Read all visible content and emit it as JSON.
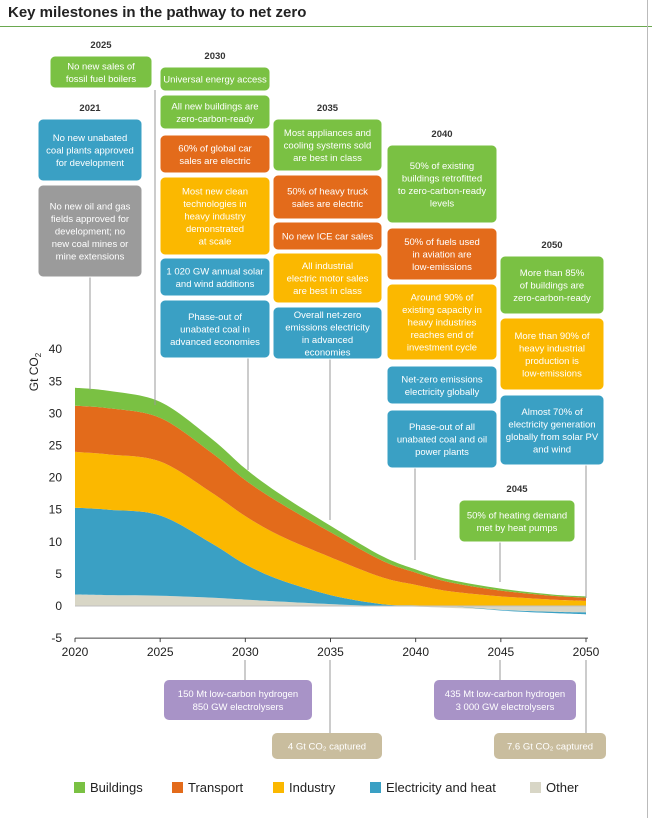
{
  "title": "Key milestones in the pathway to net zero",
  "colors": {
    "Buildings": "#7ac143",
    "Transport": "#e36b1b",
    "Industry": "#fbb800",
    "Electricity and heat": "#3aa0c4",
    "Other": "#d8d6c6",
    "box_green": "#7ac143",
    "box_orange": "#e36b1b",
    "box_yellow": "#fbb800",
    "box_blue": "#3aa0c4",
    "box_grey": "#9b9b9b",
    "box_purple": "#a893c7",
    "box_tan": "#c9bd9e"
  },
  "chart_data": {
    "type": "area",
    "title": "Key milestones in the pathway to net zero",
    "xlabel": "",
    "ylabel": "Gt CO2",
    "xlim": [
      2020,
      2050
    ],
    "ylim": [
      -5,
      40
    ],
    "x_ticks": [
      2020,
      2025,
      2030,
      2035,
      2040,
      2045,
      2050
    ],
    "y_ticks": [
      -5,
      0,
      5,
      10,
      15,
      20,
      25,
      30,
      35,
      40
    ],
    "legend_position": "bottom",
    "x": [
      2020,
      2022,
      2025,
      2028,
      2030,
      2032,
      2035,
      2038,
      2040,
      2042,
      2045,
      2048,
      2050
    ],
    "series": [
      {
        "name": "Other",
        "color_key": "Other",
        "values": [
          1.8,
          1.7,
          1.6,
          1.3,
          1.0,
          0.7,
          0.3,
          0.0,
          -0.1,
          -0.3,
          -0.6,
          -0.9,
          -1.0
        ]
      },
      {
        "name": "Electricity and heat",
        "color_key": "Electricity and heat",
        "values": [
          13.5,
          13.3,
          12.5,
          8.5,
          5.5,
          3.4,
          1.4,
          0.3,
          0.1,
          0.0,
          -0.1,
          -0.2,
          -0.3
        ]
      },
      {
        "name": "Industry",
        "color_key": "Industry",
        "values": [
          8.7,
          8.6,
          8.4,
          7.9,
          7.5,
          6.9,
          5.9,
          4.2,
          3.2,
          2.3,
          1.5,
          1.0,
          0.8
        ]
      },
      {
        "name": "Transport",
        "color_key": "Transport",
        "values": [
          7.2,
          7.2,
          6.8,
          6.2,
          5.6,
          5.1,
          3.9,
          2.6,
          1.9,
          1.4,
          0.9,
          0.6,
          0.5
        ]
      },
      {
        "name": "Buildings",
        "color_key": "Buildings",
        "values": [
          2.8,
          2.7,
          2.5,
          2.2,
          1.8,
          1.4,
          1.0,
          0.7,
          0.5,
          0.4,
          0.3,
          0.2,
          0.2
        ]
      }
    ]
  },
  "milestones": [
    {
      "year_label": "2025",
      "lines": [
        "No new sales of",
        "fossil fuel boilers"
      ],
      "color": "box_green"
    },
    {
      "year_label": "2021",
      "lines": [
        "No new unabated",
        "coal plants approved",
        "for development"
      ],
      "color": "box_blue"
    },
    {
      "year_label": "",
      "lines": [
        "No new oil and gas",
        "fields approved for",
        "development; no",
        "new coal mines or",
        "mine extensions"
      ],
      "color": "box_grey"
    },
    {
      "year_label": "2030",
      "lines": [
        "Universal energy access"
      ],
      "color": "box_green"
    },
    {
      "year_label": "",
      "lines": [
        "All new buildings are",
        "zero-carbon-ready"
      ],
      "color": "box_green"
    },
    {
      "year_label": "",
      "lines": [
        "60% of global car",
        "sales are electric"
      ],
      "color": "box_orange"
    },
    {
      "year_label": "",
      "lines": [
        "Most new clean",
        "technologies in",
        "heavy industry",
        "demonstrated",
        "at scale"
      ],
      "color": "box_yellow"
    },
    {
      "year_label": "",
      "lines": [
        "1 020 GW annual solar",
        "and wind additions"
      ],
      "color": "box_blue"
    },
    {
      "year_label": "",
      "lines": [
        "Phase-out of",
        "unabated coal in",
        "advanced economies"
      ],
      "color": "box_blue"
    },
    {
      "year_label": "2035",
      "lines": [
        "Most appliances and",
        "cooling systems sold",
        "are best in class"
      ],
      "color": "box_green"
    },
    {
      "year_label": "",
      "lines": [
        "50% of heavy truck",
        "sales are electric"
      ],
      "color": "box_orange"
    },
    {
      "year_label": "",
      "lines": [
        "No new ICE car sales"
      ],
      "color": "box_orange"
    },
    {
      "year_label": "",
      "lines": [
        "All industrial",
        "electric motor sales",
        "are best in class"
      ],
      "color": "box_yellow"
    },
    {
      "year_label": "",
      "lines": [
        "Overall net-zero",
        "emissions electricity",
        "in advanced",
        "economies"
      ],
      "color": "box_blue"
    },
    {
      "year_label": "2040",
      "lines": [
        "50% of existing",
        "buildings retrofitted",
        "to zero-carbon-ready",
        "levels"
      ],
      "color": "box_green"
    },
    {
      "year_label": "",
      "lines": [
        "50% of fuels used",
        "in aviation are",
        "low-emissions"
      ],
      "color": "box_orange"
    },
    {
      "year_label": "",
      "lines": [
        "Around 90% of",
        "existing capacity in",
        "heavy industries",
        "reaches end of",
        "investment cycle"
      ],
      "color": "box_yellow"
    },
    {
      "year_label": "",
      "lines": [
        "Net-zero emissions",
        "electricity globally"
      ],
      "color": "box_blue"
    },
    {
      "year_label": "",
      "lines": [
        "Phase-out of all",
        "unabated coal and oil",
        "power plants"
      ],
      "color": "box_blue"
    },
    {
      "year_label": "2050",
      "lines": [
        "More than 85%",
        "of buildings are",
        "zero-carbon-ready"
      ],
      "color": "box_green"
    },
    {
      "year_label": "",
      "lines": [
        "More than 90% of",
        "heavy industrial",
        "production is",
        "low-emissions"
      ],
      "color": "box_yellow"
    },
    {
      "year_label": "",
      "lines": [
        "Almost 70% of",
        "electricity generation",
        "globally from solar PV",
        "and wind"
      ],
      "color": "box_blue"
    },
    {
      "year_label": "2045",
      "lines": [
        "50% of heating demand",
        "met by heat pumps"
      ],
      "color": "box_green"
    }
  ],
  "bottom_milestones": [
    {
      "lines": [
        "150 Mt low-carbon hydrogen",
        "850 GW electrolysers"
      ],
      "color": "box_purple"
    },
    {
      "lines": [
        "4 Gt CO₂ captured"
      ],
      "color": "box_tan"
    },
    {
      "lines": [
        "435 Mt low-carbon hydrogen",
        "3 000 GW electrolysers"
      ],
      "color": "box_purple"
    },
    {
      "lines": [
        "7.6 Gt CO₂ captured"
      ],
      "color": "box_tan"
    }
  ],
  "legend": [
    "Buildings",
    "Transport",
    "Industry",
    "Electricity and heat",
    "Other"
  ]
}
